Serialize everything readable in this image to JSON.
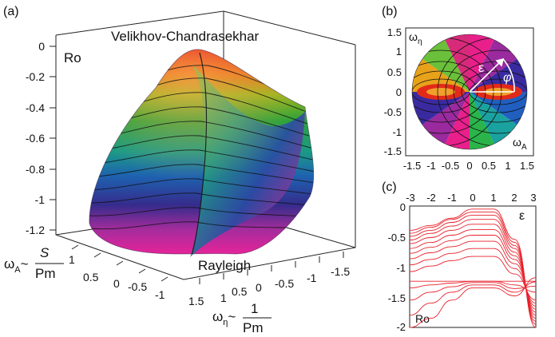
{
  "figure": {
    "panels": [
      {
        "id": "a",
        "label": "(a)",
        "title_top": "Velikhov-Chandrasekhar",
        "title_bottom": "Rayleigh",
        "z_label": "Ro",
        "z_ticks": [
          "0",
          "-0.2",
          "-0.4",
          "-0.6",
          "-0.8",
          "-1",
          "-1.2"
        ],
        "left_ticks": [
          "1",
          "0.5",
          "0",
          "-0.5",
          "-1"
        ],
        "right_ticks": [
          "1.5",
          "1",
          "0.5",
          "0",
          "-0.5",
          "-1",
          "-1.5"
        ],
        "left_axis_label": {
          "symbol": "ω",
          "sub": "A",
          "tilde": "~",
          "num": "S",
          "den": "Pm"
        },
        "right_axis_label": {
          "symbol": "ω",
          "sub": "η",
          "tilde": "~",
          "num": "1",
          "den": "Pm"
        }
      },
      {
        "id": "b",
        "label": "(b)",
        "y_label": {
          "symbol": "ω",
          "sub": "η"
        },
        "x_label": {
          "symbol": "ω",
          "sub": "A"
        },
        "y_ticks": [
          "1.5",
          "1",
          "0.5",
          "0",
          "-0.5",
          "-1",
          "-1.5"
        ],
        "x_ticks": [
          "-1.5",
          "-1",
          "-0.5",
          "0",
          "0.5",
          "1",
          "1.5"
        ],
        "annotations": [
          "ε",
          "φ"
        ]
      },
      {
        "id": "c",
        "label": "(c)",
        "x_label": "ε",
        "y_label": "Ro",
        "x_ticks": [
          "-3",
          "-2",
          "-1",
          "0",
          "1",
          "2",
          "3"
        ],
        "y_ticks": [
          "0",
          "-0.5",
          "-1",
          "-1.5",
          "-2"
        ]
      }
    ]
  },
  "chart_data": {
    "type": "line",
    "xlim": [
      -3,
      3
    ],
    "ylim": [
      -2,
      0
    ],
    "xlabel": "ε",
    "ylabel": "Ro",
    "color": "#e8202a",
    "series": [
      {
        "values": [
          -0.4,
          -0.32,
          -0.2,
          -0.05,
          -0.05,
          -0.55,
          -2.0
        ],
        "x": [
          -3,
          -2,
          -1,
          0,
          1,
          2,
          3
        ]
      },
      {
        "values": [
          -0.45,
          -0.35,
          -0.22,
          -0.1,
          -0.1,
          -0.6,
          -1.95
        ],
        "x": [
          -3,
          -2,
          -1,
          0,
          1,
          2,
          3
        ]
      },
      {
        "values": [
          -0.5,
          -0.4,
          -0.27,
          -0.15,
          -0.15,
          -0.65,
          -1.9
        ],
        "x": [
          -3,
          -2,
          -1,
          0,
          1,
          2,
          3
        ]
      },
      {
        "values": [
          -0.56,
          -0.45,
          -0.33,
          -0.22,
          -0.22,
          -0.7,
          -1.85
        ],
        "x": [
          -3,
          -2,
          -1,
          0,
          1,
          2,
          3
        ]
      },
      {
        "values": [
          -0.62,
          -0.52,
          -0.4,
          -0.3,
          -0.3,
          -0.76,
          -1.8
        ],
        "x": [
          -3,
          -2,
          -1,
          0,
          1,
          2,
          3
        ]
      },
      {
        "values": [
          -0.7,
          -0.6,
          -0.48,
          -0.39,
          -0.39,
          -0.82,
          -1.75
        ],
        "x": [
          -3,
          -2,
          -1,
          0,
          1,
          2,
          3
        ]
      },
      {
        "values": [
          -0.78,
          -0.68,
          -0.57,
          -0.48,
          -0.48,
          -0.88,
          -1.7
        ],
        "x": [
          -3,
          -2,
          -1,
          0,
          1,
          2,
          3
        ]
      },
      {
        "values": [
          -0.87,
          -0.77,
          -0.67,
          -0.58,
          -0.58,
          -0.95,
          -1.65
        ],
        "x": [
          -3,
          -2,
          -1,
          0,
          1,
          2,
          3
        ]
      },
      {
        "values": [
          -0.97,
          -0.88,
          -0.78,
          -0.7,
          -0.7,
          -1.03,
          -1.6
        ],
        "x": [
          -3,
          -2,
          -1,
          0,
          1,
          2,
          3
        ]
      },
      {
        "values": [
          -1.08,
          -0.99,
          -0.9,
          -0.83,
          -0.83,
          -1.12,
          -1.55
        ],
        "x": [
          -3,
          -2,
          -1,
          0,
          1,
          2,
          3
        ]
      },
      {
        "values": [
          -1.24,
          -1.24,
          -1.24,
          -1.24,
          -1.24,
          -1.24,
          -1.24
        ],
        "x": [
          -3,
          -2,
          -1,
          0,
          1,
          2,
          3
        ]
      },
      {
        "values": [
          -1.35,
          -1.3,
          -1.27,
          -1.24,
          -1.24,
          -1.3,
          -1.42
        ],
        "x": [
          -3,
          -2,
          -1,
          0,
          1,
          2,
          3
        ]
      },
      {
        "values": [
          -1.55,
          -1.42,
          -1.33,
          -1.26,
          -1.26,
          -1.36,
          -1.32
        ],
        "x": [
          -3,
          -2,
          -1,
          0,
          1,
          2,
          3
        ]
      },
      {
        "values": [
          -1.8,
          -1.6,
          -1.42,
          -1.3,
          -1.3,
          -1.42,
          -1.25
        ],
        "x": [
          -3,
          -2,
          -1,
          0,
          1,
          2,
          3
        ]
      },
      {
        "values": [
          -2.0,
          -1.85,
          -1.55,
          -1.35,
          -1.35,
          -1.48,
          -1.18
        ],
        "x": [
          -3,
          -2,
          -1,
          0,
          1,
          2,
          3
        ]
      }
    ]
  }
}
